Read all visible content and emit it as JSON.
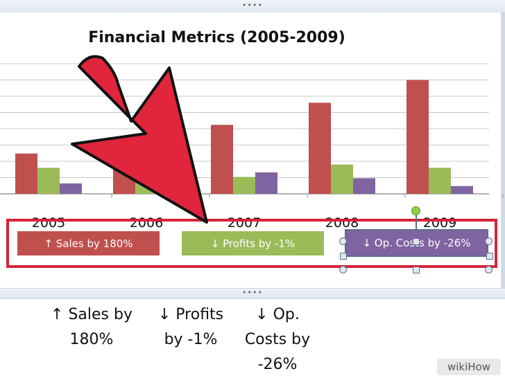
{
  "chart_data": {
    "type": "bar",
    "title": "Financial Metrics (2005-2009)",
    "categories": [
      "2005",
      "2006",
      "2007",
      "2008",
      "2009"
    ],
    "series": [
      {
        "values": [
          62,
          58,
          106,
          140,
          175
        ],
        "color": "#c0504d"
      },
      {
        "values": [
          40,
          26,
          26,
          45,
          40
        ],
        "color": "#9bbb59"
      },
      {
        "values": [
          16,
          27,
          33,
          24,
          12
        ],
        "color": "#8064a2"
      }
    ],
    "ylim": [
      0,
      200
    ],
    "grid": true
  },
  "labels": {
    "sales": "↑ Sales by 180%",
    "profits": "↓ Profits by -1%",
    "opcosts": "↓ Op. Costs by -26%"
  },
  "sheet_cells": {
    "col1": "↑ Sales by 180%",
    "col2": "↓ Profits by -1%",
    "col3": "↓ Op. Costs by -26%"
  },
  "ui": {
    "ruler_dots": "••••",
    "watermark": "wikiHow"
  },
  "colors": {
    "callout_border": "#d4243a",
    "arrow": "#e0253c"
  }
}
